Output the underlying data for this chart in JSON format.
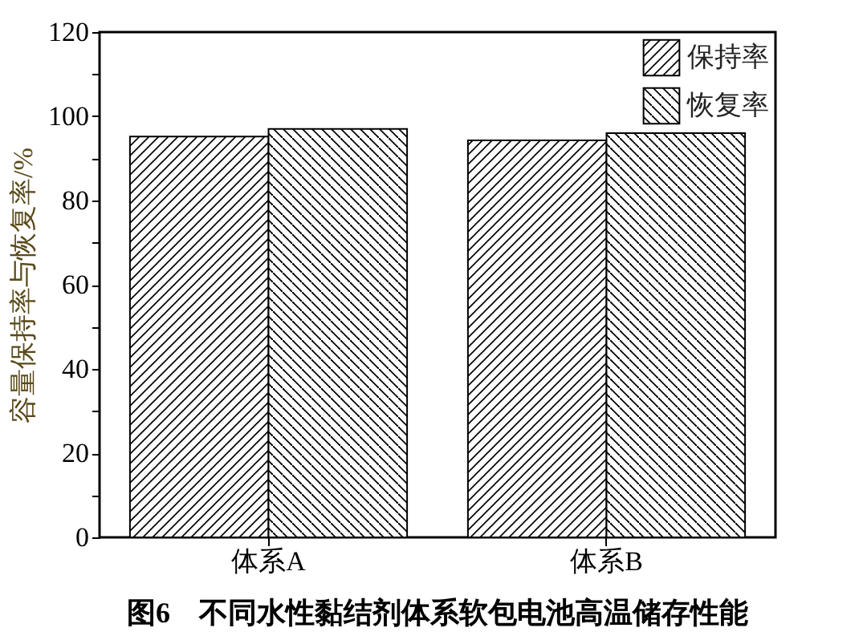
{
  "chart_data": {
    "type": "bar",
    "title": "图6　不同水性黏结剂体系软包电池高温储存性能",
    "ylabel": "容量保持率与恢复率/%",
    "categories": [
      "体系A",
      "体系B"
    ],
    "series": [
      {
        "name": "保持率",
        "color": "#000000",
        "values": [
          95.2,
          94.3
        ]
      },
      {
        "name": "恢复率",
        "color": "#000000",
        "values": [
          97.0,
          96.0
        ]
      }
    ],
    "ylim": [
      0,
      120
    ],
    "yticks": [
      0,
      {
        "value": 10,
        "label": null
      },
      20,
      {
        "value": 30,
        "label": null
      },
      40,
      {
        "value": 50,
        "label": null
      },
      60,
      {
        "value": 70,
        "label": null
      },
      80,
      {
        "value": 90,
        "label": null
      },
      100,
      {
        "value": 110,
        "label": null
      },
      120
    ],
    "legend": "top right",
    "grid": false
  }
}
